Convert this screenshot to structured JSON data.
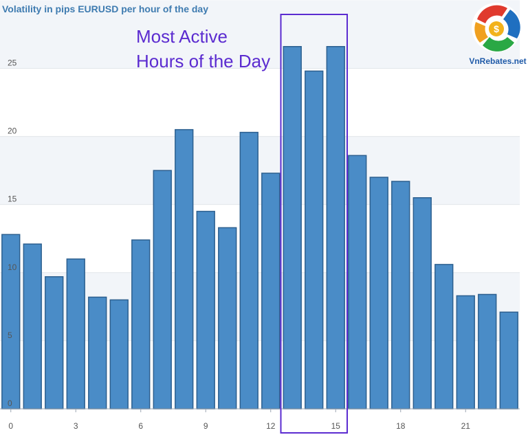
{
  "chart_data": {
    "type": "bar",
    "title": "Volatility in pips EURUSD per hour of the day",
    "xlabel": "",
    "ylabel": "",
    "x_ticks": [
      "0",
      "3",
      "6",
      "9",
      "12",
      "15",
      "18",
      "21"
    ],
    "y_ticks": [
      "0",
      "5",
      "10",
      "15",
      "20",
      "25"
    ],
    "ylim": [
      0,
      28
    ],
    "categories": [
      0,
      1,
      2,
      3,
      4,
      5,
      6,
      7,
      8,
      9,
      10,
      11,
      12,
      13,
      14,
      15,
      16,
      17,
      18,
      19,
      20,
      21,
      22,
      23
    ],
    "values": [
      12.8,
      12.1,
      9.7,
      11.0,
      8.2,
      8.0,
      12.4,
      17.5,
      20.5,
      14.5,
      13.3,
      20.3,
      17.3,
      26.6,
      24.8,
      26.6,
      18.6,
      17.0,
      16.7,
      15.5,
      10.6,
      8.3,
      8.4,
      7.1
    ],
    "grid": true,
    "bar_color": "#4a8cc7",
    "bar_edge_color": "#2c5f8f"
  },
  "annotation": {
    "text_line1": "Most Active",
    "text_line2": "Hours of the Day",
    "highlight_hours": [
      13,
      15
    ],
    "color": "#5b2bd0"
  },
  "logo": {
    "text": "VnRebates.net",
    "symbol": "$"
  }
}
